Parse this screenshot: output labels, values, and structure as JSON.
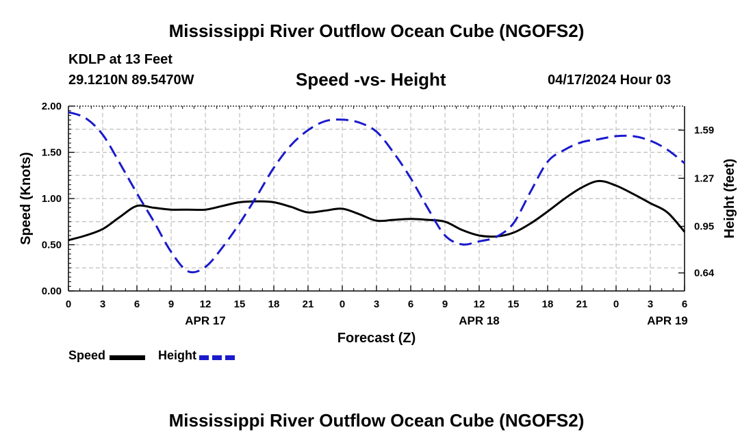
{
  "header": {
    "title": "Mississippi River Outflow Ocean Cube (NGOFS2)",
    "station": "KDLP at 13 Feet",
    "coords": "29.1210N  89.5470W",
    "subtitle": "Speed -vs- Height",
    "datetime": "04/17/2024 Hour 03"
  },
  "footer": {
    "title": "Mississippi River Outflow Ocean Cube (NGOFS2)"
  },
  "legend": {
    "speed_label": "Speed",
    "height_label": "Height",
    "speed_color": "#000000",
    "height_color": "#1a1acc"
  },
  "chart_data": {
    "type": "line",
    "title": "Speed -vs- Height",
    "xlabel": "Forecast (Z)",
    "ylabel": "Speed (Knots)",
    "y2label": "Height (feet)",
    "x_range_hours": [
      0,
      54
    ],
    "ylim": [
      0,
      2.0
    ],
    "y2lim": [
      0.52,
      1.75
    ],
    "x_ticks": [
      {
        "hour": 0,
        "label": "0"
      },
      {
        "hour": 3,
        "label": "3"
      },
      {
        "hour": 6,
        "label": "6"
      },
      {
        "hour": 9,
        "label": "9"
      },
      {
        "hour": 12,
        "label": "12"
      },
      {
        "hour": 15,
        "label": "15"
      },
      {
        "hour": 18,
        "label": "18"
      },
      {
        "hour": 21,
        "label": "21"
      },
      {
        "hour": 24,
        "label": "0"
      },
      {
        "hour": 27,
        "label": "3"
      },
      {
        "hour": 30,
        "label": "6"
      },
      {
        "hour": 33,
        "label": "9"
      },
      {
        "hour": 36,
        "label": "12"
      },
      {
        "hour": 39,
        "label": "15"
      },
      {
        "hour": 42,
        "label": "18"
      },
      {
        "hour": 45,
        "label": "21"
      },
      {
        "hour": 48,
        "label": "0"
      },
      {
        "hour": 51,
        "label": "3"
      },
      {
        "hour": 54,
        "label": "6"
      }
    ],
    "date_labels": [
      {
        "hour": 12,
        "label": "APR 17"
      },
      {
        "hour": 36,
        "label": "APR 18"
      },
      {
        "hour": 52.5,
        "label": "APR 19"
      }
    ],
    "y_ticks": [
      {
        "value": 0.0,
        "label": "0.00"
      },
      {
        "value": 0.5,
        "label": "0.50"
      },
      {
        "value": 1.0,
        "label": "1.00"
      },
      {
        "value": 1.5,
        "label": "1.50"
      },
      {
        "value": 2.0,
        "label": "2.00"
      }
    ],
    "y2_ticks": [
      {
        "value": 0.64,
        "label": "0.64"
      },
      {
        "value": 0.95,
        "label": "0.95"
      },
      {
        "value": 1.27,
        "label": "1.27"
      },
      {
        "value": 1.59,
        "label": "1.59"
      }
    ],
    "grid": true,
    "series": [
      {
        "name": "Speed",
        "axis": "left",
        "color": "#000000",
        "dash": "solid",
        "x": [
          0,
          1.5,
          3,
          4.5,
          6,
          7.5,
          9,
          10.5,
          12,
          13.5,
          15,
          16.5,
          18,
          19.5,
          21,
          22.5,
          24,
          25.5,
          27,
          28.5,
          30,
          31.5,
          33,
          34.5,
          36,
          37.5,
          39,
          40.5,
          42,
          43.5,
          45,
          46.5,
          48,
          49.5,
          51,
          52.5,
          54
        ],
        "values": [
          0.55,
          0.6,
          0.67,
          0.8,
          0.92,
          0.9,
          0.88,
          0.88,
          0.88,
          0.92,
          0.96,
          0.97,
          0.96,
          0.91,
          0.85,
          0.87,
          0.89,
          0.83,
          0.76,
          0.77,
          0.78,
          0.77,
          0.75,
          0.66,
          0.6,
          0.59,
          0.63,
          0.73,
          0.86,
          1.0,
          1.12,
          1.19,
          1.14,
          1.05,
          0.95,
          0.85,
          0.64
        ]
      },
      {
        "name": "Height",
        "axis": "right",
        "color": "#1a1acc",
        "dash": "dashed",
        "x": [
          0,
          1.5,
          3,
          4.5,
          6,
          7.5,
          9,
          10.5,
          12,
          13.5,
          15,
          16.5,
          18,
          19.5,
          21,
          22.5,
          24,
          25.5,
          27,
          28.5,
          30,
          31.5,
          33,
          34.5,
          36,
          37.5,
          39,
          40.5,
          42,
          43.5,
          45,
          46.5,
          48,
          49.5,
          51,
          52.5,
          54
        ],
        "values": [
          1.71,
          1.67,
          1.56,
          1.37,
          1.17,
          0.98,
          0.78,
          0.65,
          0.68,
          0.81,
          0.97,
          1.15,
          1.34,
          1.49,
          1.59,
          1.65,
          1.66,
          1.64,
          1.58,
          1.44,
          1.27,
          1.07,
          0.89,
          0.83,
          0.85,
          0.88,
          0.97,
          1.18,
          1.38,
          1.46,
          1.51,
          1.53,
          1.55,
          1.55,
          1.52,
          1.46,
          1.37
        ]
      }
    ]
  }
}
